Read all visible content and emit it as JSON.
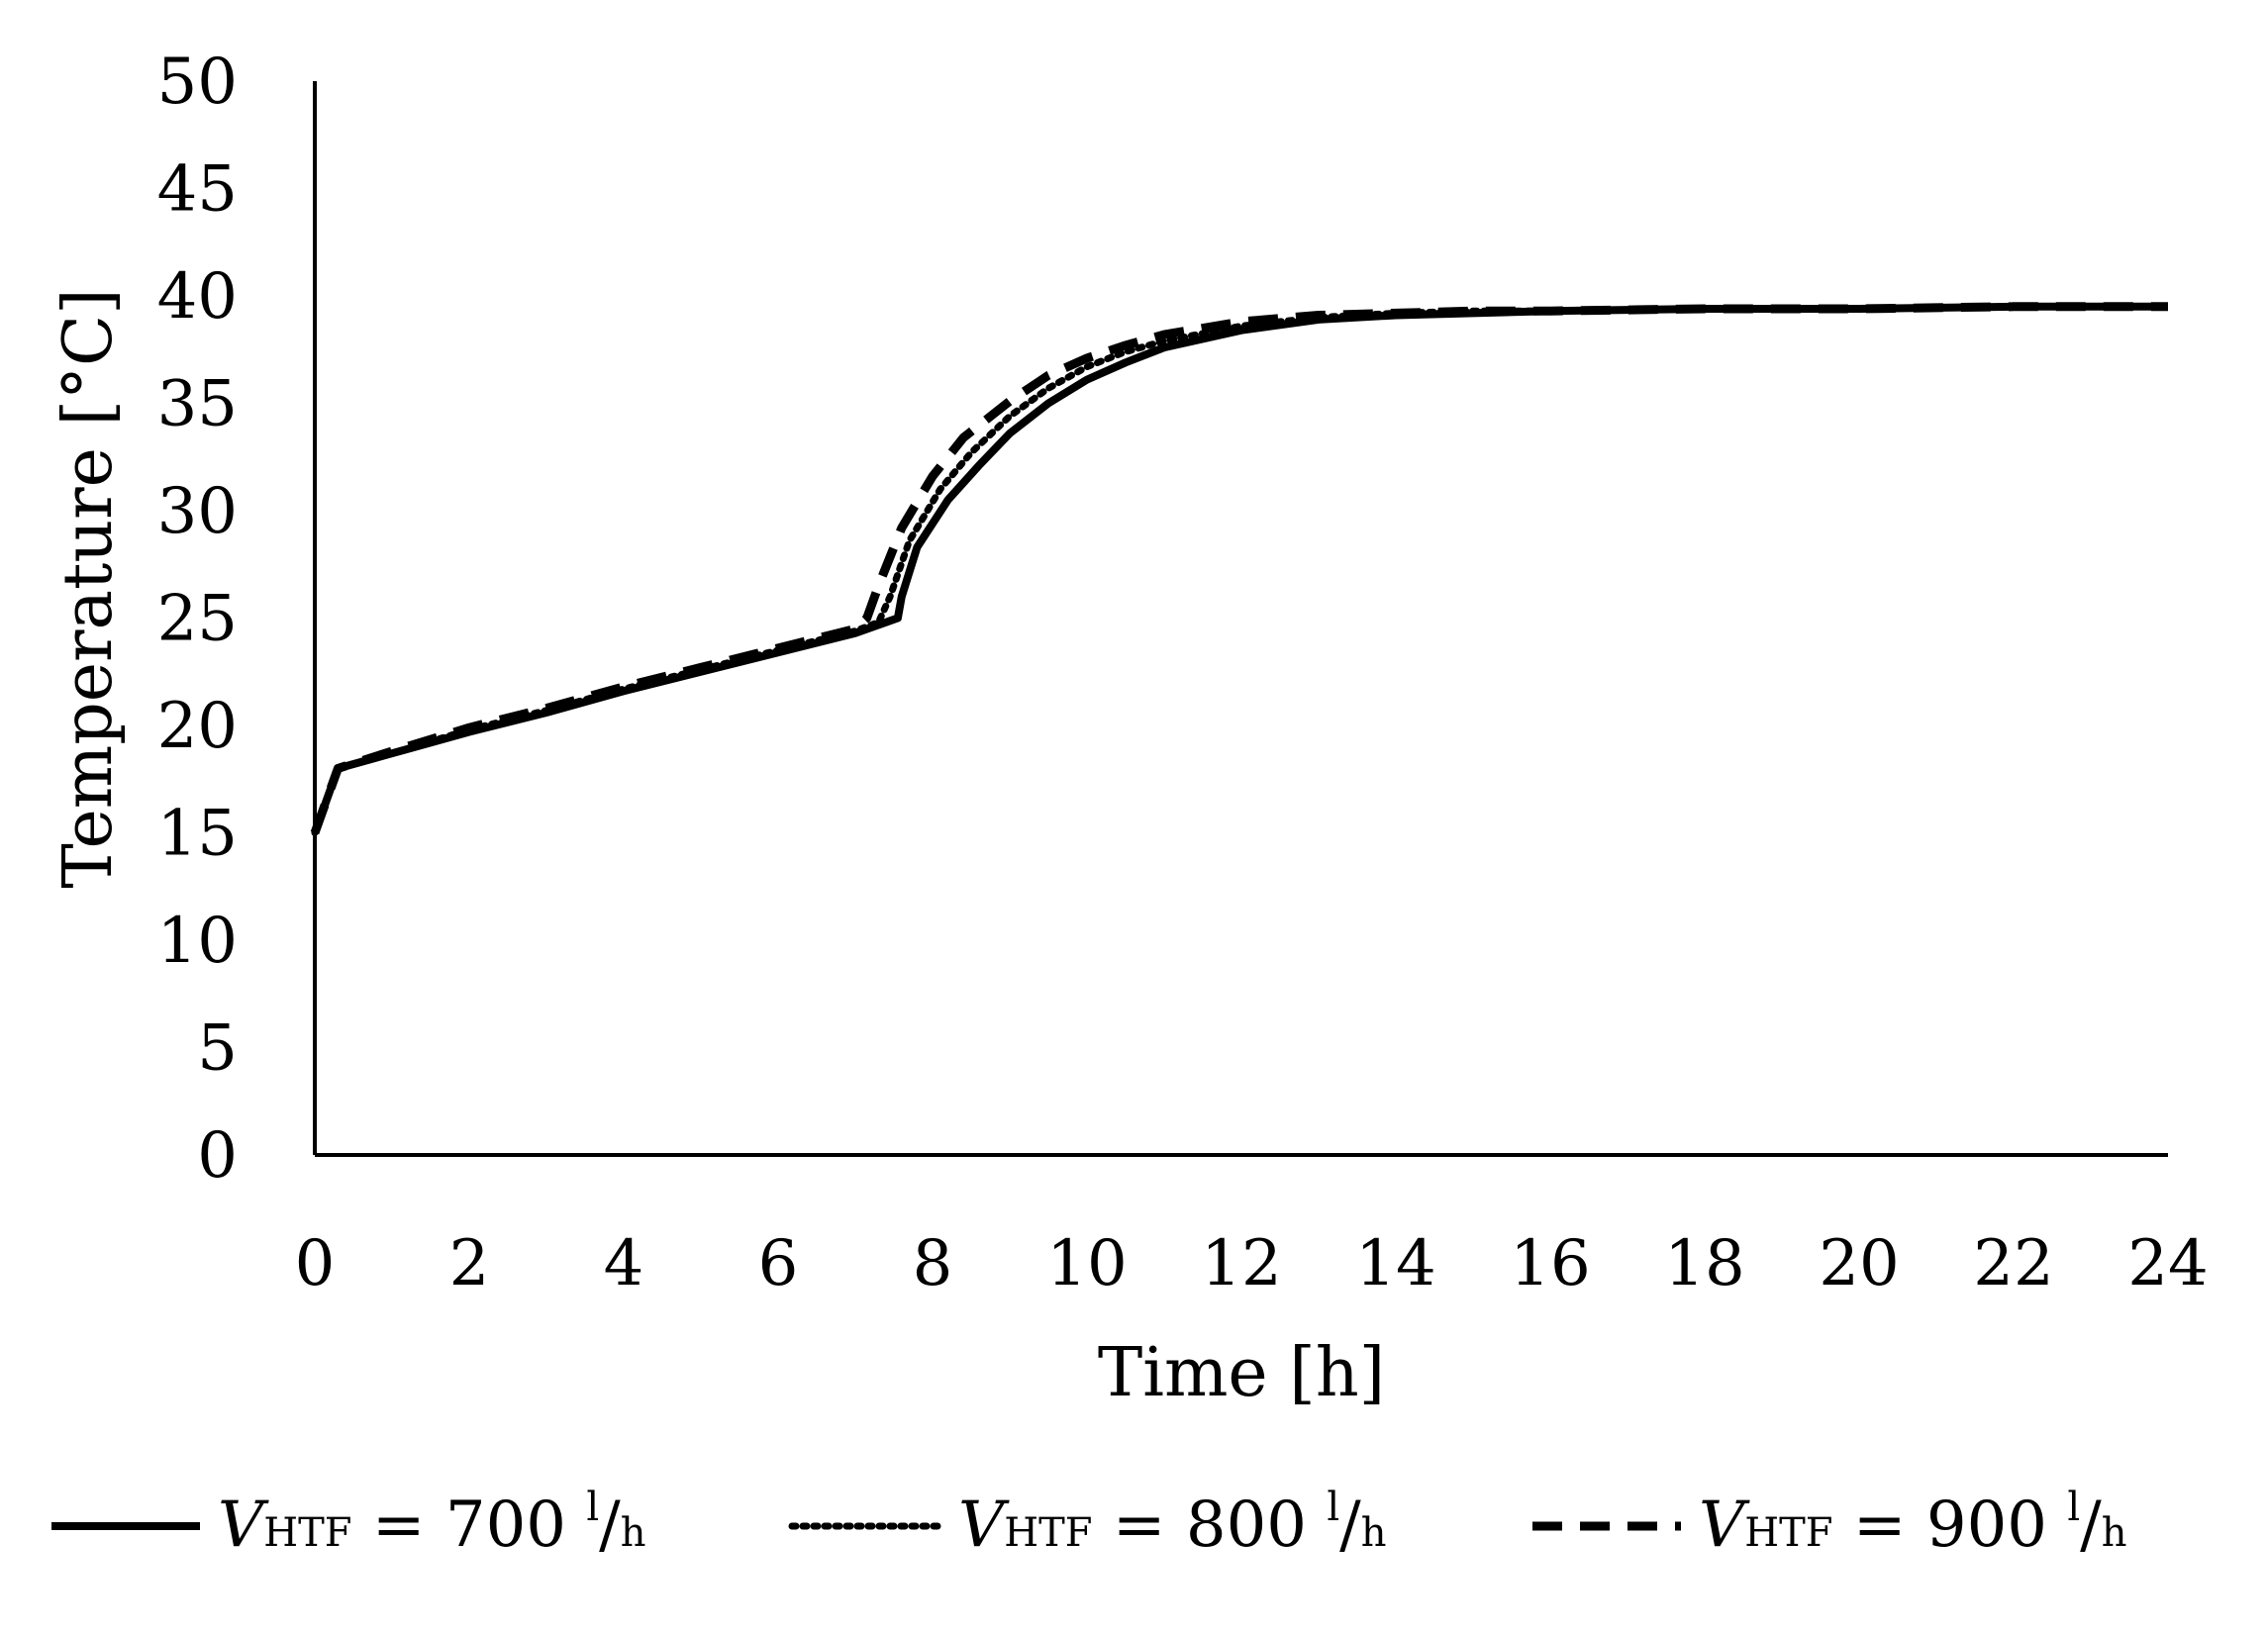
{
  "chart_data": {
    "type": "line",
    "title": "",
    "xlabel": "Time [h]",
    "ylabel": "Temperature [°C]",
    "xlim": [
      0,
      24
    ],
    "ylim": [
      0,
      50
    ],
    "xticks": [
      0,
      2,
      4,
      6,
      8,
      10,
      12,
      14,
      16,
      18,
      20,
      22,
      24
    ],
    "yticks": [
      0,
      5,
      10,
      15,
      20,
      25,
      30,
      35,
      40,
      45,
      50
    ],
    "grid": false,
    "legend_position": "bottom",
    "series": [
      {
        "name": "V HTF = 700 l/h",
        "legend": {
          "symbol": "V",
          "sub": "HTF",
          "eq": " = 700 ",
          "sup": "l",
          "slash": "/",
          "den": "h"
        },
        "style": "solid",
        "x": [
          0,
          0.3,
          1,
          2,
          3,
          4,
          5,
          6,
          7,
          7.55,
          7.6,
          7.8,
          8.2,
          8.6,
          9.0,
          9.5,
          10,
          10.5,
          11,
          12,
          13,
          14,
          15,
          16,
          18,
          20,
          22,
          24
        ],
        "y": [
          15.0,
          18.0,
          18.7,
          19.7,
          20.6,
          21.6,
          22.5,
          23.4,
          24.3,
          25.0,
          26.0,
          28.3,
          30.5,
          32.1,
          33.6,
          35.0,
          36.1,
          36.9,
          37.6,
          38.4,
          38.9,
          39.1,
          39.2,
          39.3,
          39.4,
          39.4,
          39.5,
          39.5
        ]
      },
      {
        "name": "V HTF = 800 l/h",
        "legend": {
          "symbol": "V",
          "sub": "HTF",
          "eq": " = 800 ",
          "sup": "l",
          "slash": "/",
          "den": "h"
        },
        "style": "dotted",
        "x": [
          0,
          0.3,
          1,
          2,
          3,
          4,
          5,
          6,
          7,
          7.3,
          7.45,
          7.7,
          8.1,
          8.5,
          9.0,
          9.5,
          10,
          10.5,
          11,
          12,
          13,
          14,
          15,
          16,
          18,
          20,
          22,
          24
        ],
        "y": [
          15.0,
          18.0,
          18.7,
          19.8,
          20.7,
          21.7,
          22.6,
          23.5,
          24.4,
          24.8,
          26.0,
          28.6,
          31.0,
          32.7,
          34.4,
          35.7,
          36.7,
          37.4,
          37.9,
          38.6,
          39.0,
          39.2,
          39.3,
          39.3,
          39.4,
          39.4,
          39.5,
          39.5
        ]
      },
      {
        "name": "V HTF = 900 l/h",
        "legend": {
          "symbol": "V",
          "sub": "HTF",
          "eq": " = 900 ",
          "sup": "l",
          "slash": "/",
          "den": "h"
        },
        "style": "dashed",
        "x": [
          0,
          0.3,
          1,
          2,
          3,
          4,
          5,
          6,
          7,
          7.15,
          7.3,
          7.6,
          8.0,
          8.4,
          9.0,
          9.5,
          10,
          10.5,
          11,
          12,
          13,
          14,
          15,
          16,
          18,
          20,
          22,
          24
        ],
        "y": [
          15.0,
          18.0,
          18.8,
          19.9,
          20.8,
          21.8,
          22.7,
          23.6,
          24.5,
          25.0,
          26.5,
          29.2,
          31.6,
          33.4,
          35.1,
          36.3,
          37.1,
          37.7,
          38.2,
          38.8,
          39.1,
          39.2,
          39.3,
          39.3,
          39.4,
          39.4,
          39.5,
          39.5
        ]
      }
    ]
  }
}
